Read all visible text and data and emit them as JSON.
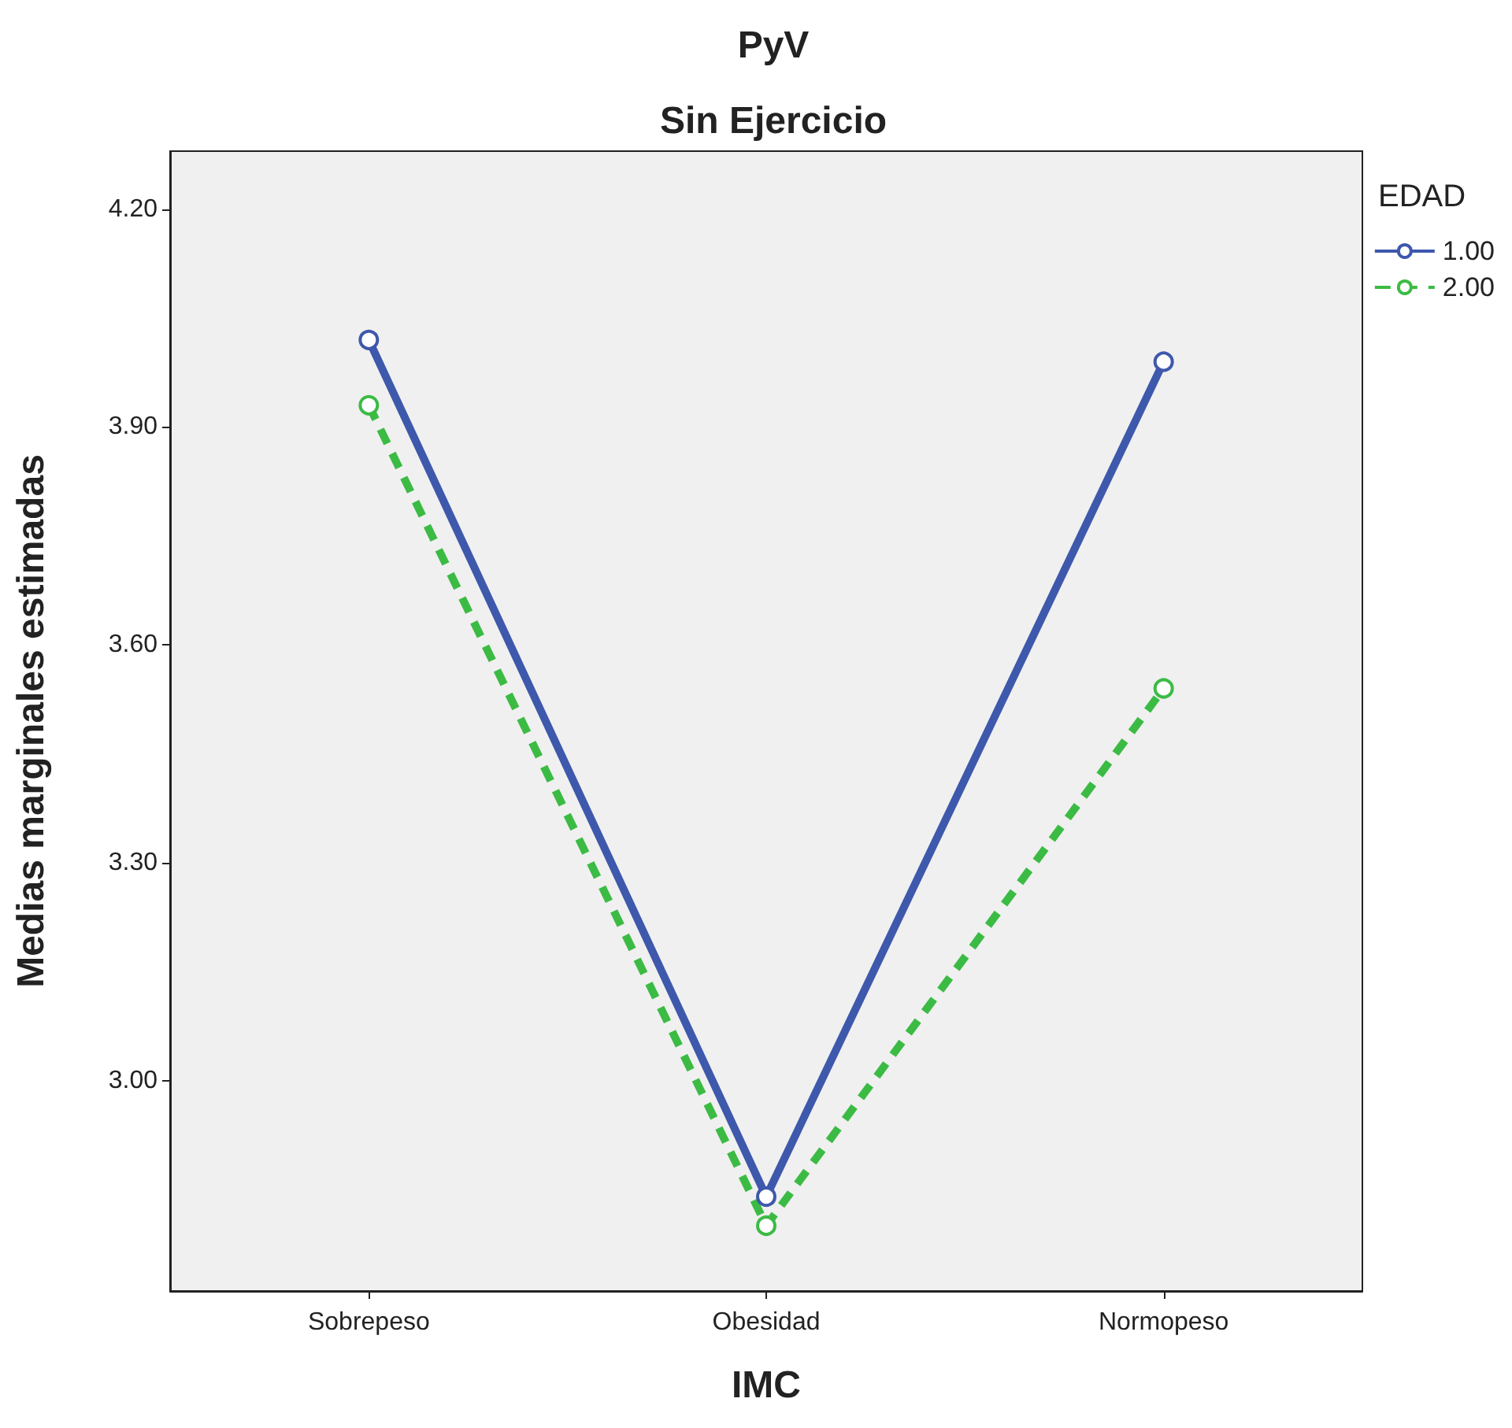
{
  "chart_data": {
    "type": "line",
    "title": "PyV",
    "subtitle": "Sin Ejercicio",
    "xlabel": "IMC",
    "ylabel": "Medias marginales estimadas",
    "legend_title": "EDAD",
    "categories": [
      "Sobrepeso",
      "Obesidad",
      "Normopeso"
    ],
    "series": [
      {
        "name": "1.00",
        "color": "#3e58ac",
        "values": [
          4.02,
          2.84,
          3.99
        ],
        "line_style": "solid"
      },
      {
        "name": "2.00",
        "color": "#3cbb44",
        "values": [
          3.93,
          2.8,
          3.54
        ],
        "line_style": "dashed"
      }
    ],
    "ylim": [
      2.71,
      4.28
    ],
    "yticks": [
      {
        "value": 3.0,
        "label": "3.00"
      },
      {
        "value": 3.3,
        "label": "3.30"
      },
      {
        "value": 3.6,
        "label": "3.60"
      },
      {
        "value": 3.9,
        "label": "3.90"
      },
      {
        "value": 4.2,
        "label": "4.20"
      }
    ],
    "grid": false,
    "legend": "top right",
    "marker": "circle"
  }
}
